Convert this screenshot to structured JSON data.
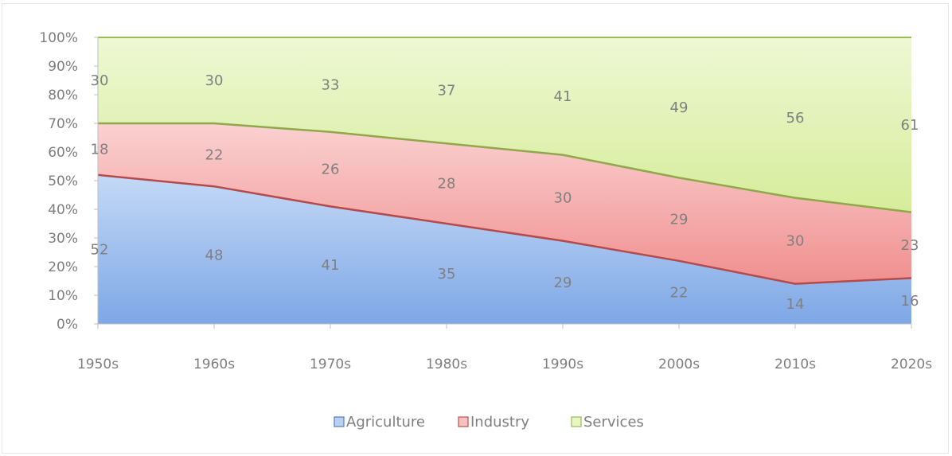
{
  "chart_data": {
    "type": "area",
    "stacked": true,
    "percent": true,
    "categories": [
      "1950s",
      "1960s",
      "1970s",
      "1980s",
      "1990s",
      "2000s",
      "2010s",
      "2020s"
    ],
    "series": [
      {
        "name": "Agriculture",
        "values": [
          52,
          48,
          41,
          35,
          29,
          22,
          14,
          16
        ],
        "color": "#8fb4ea",
        "line": "#a0503c"
      },
      {
        "name": "Industry",
        "values": [
          18,
          22,
          26,
          28,
          30,
          29,
          30,
          23
        ],
        "color": "#f4a7a7",
        "line": "#98b35a"
      },
      {
        "name": "Services",
        "values": [
          30,
          30,
          33,
          37,
          41,
          49,
          56,
          61
        ],
        "color": "#e4f4b9",
        "line": "#9bbb59"
      }
    ],
    "y_ticks": [
      "0%",
      "10%",
      "20%",
      "30%",
      "40%",
      "50%",
      "60%",
      "70%",
      "80%",
      "90%",
      "100%"
    ],
    "ylim": [
      0,
      100
    ],
    "grid": false,
    "legend_position": "bottom",
    "data_labels": true
  }
}
